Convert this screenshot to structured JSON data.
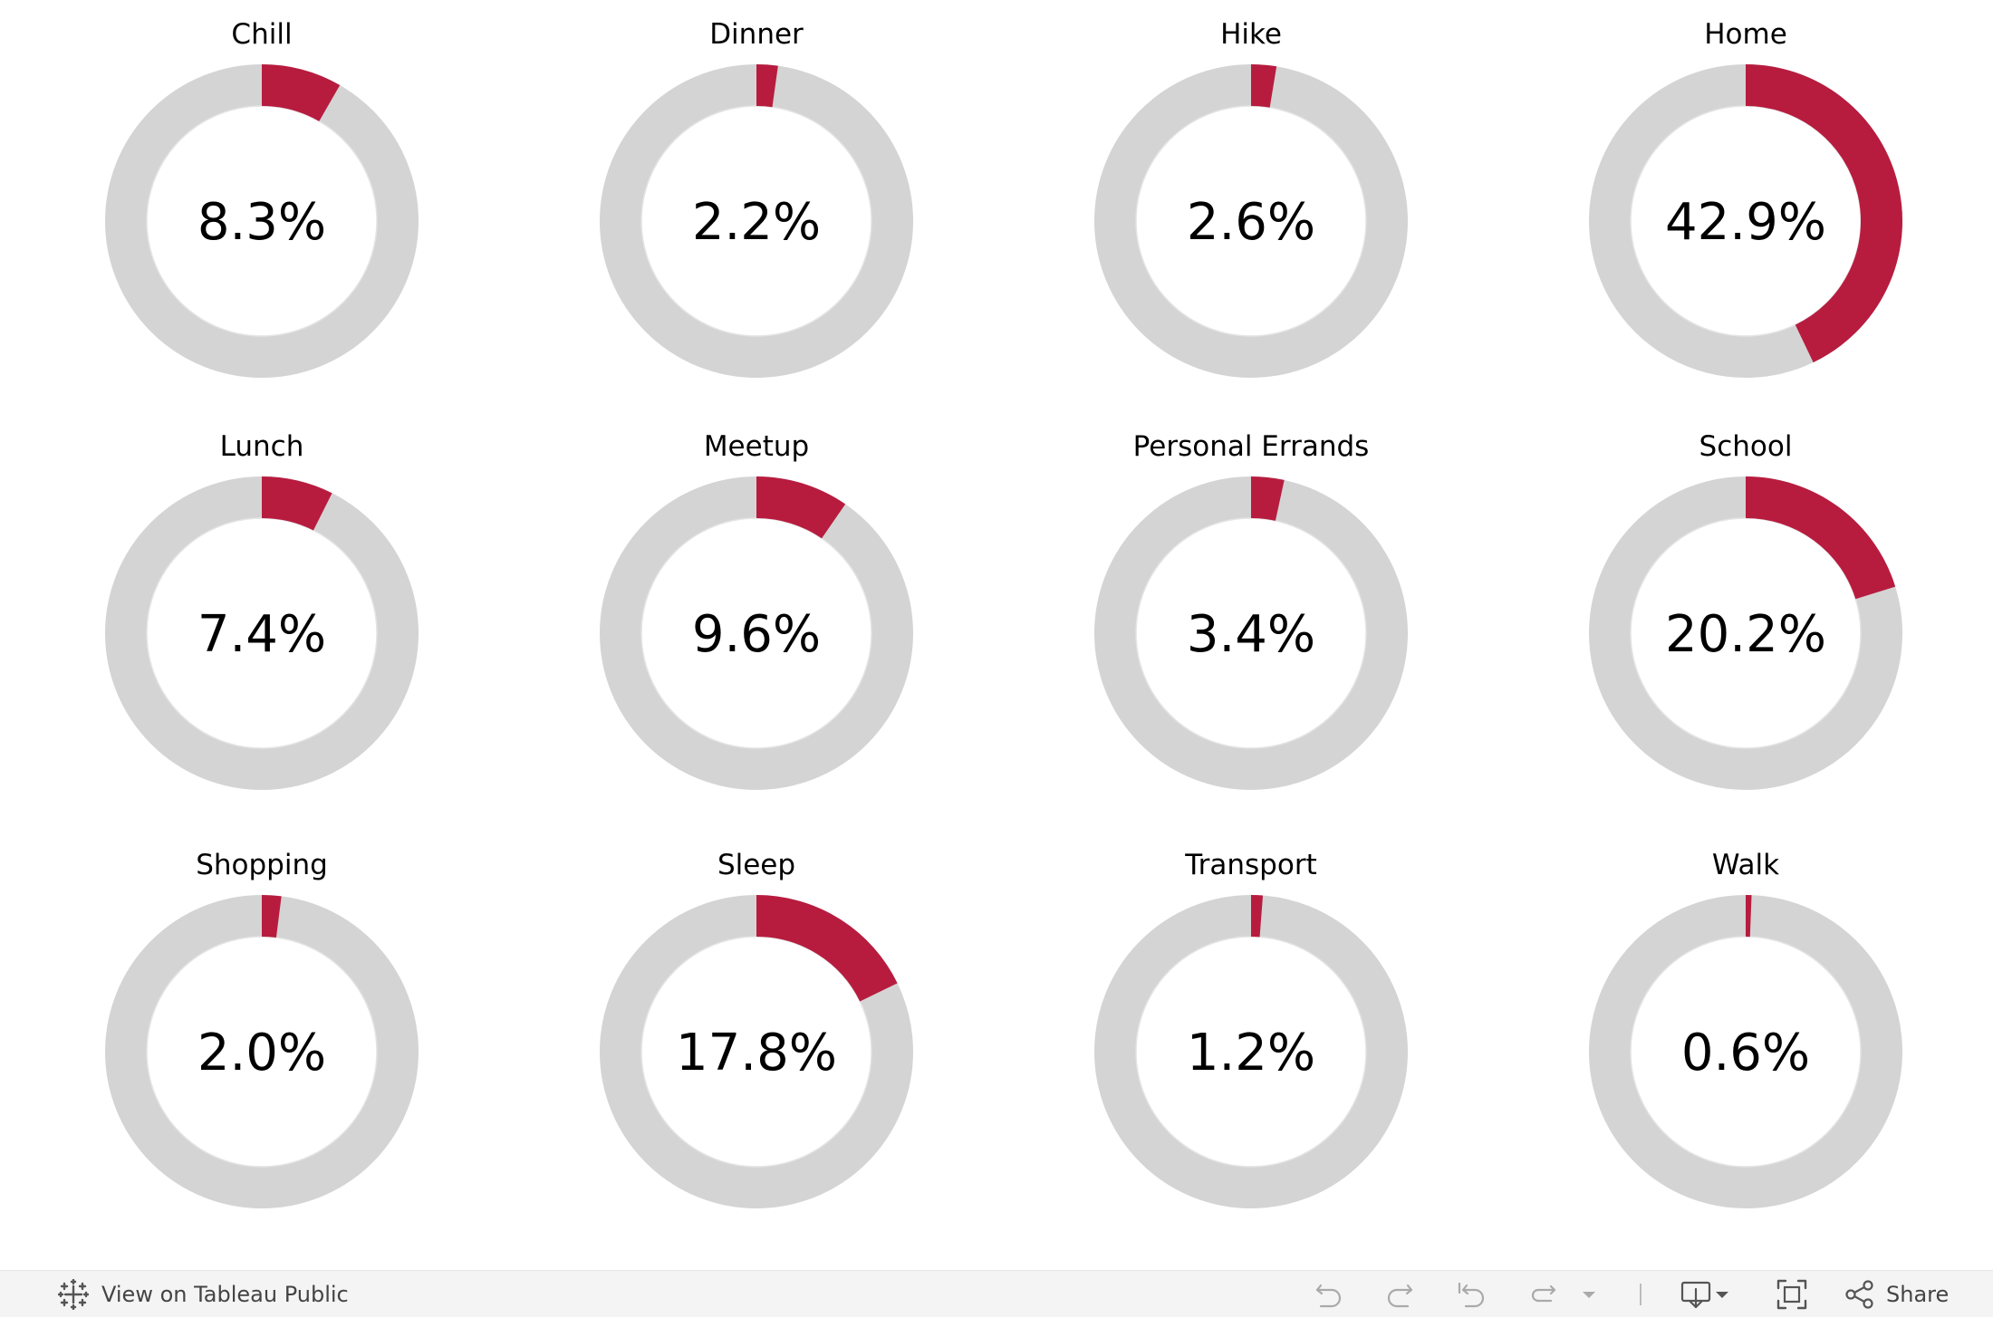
{
  "chart_data": {
    "type": "pie",
    "variant": "donut",
    "layout": "grid-3x4",
    "colors": {
      "value": "#b71c3f",
      "remainder": "#d4d4d4"
    },
    "categories": [
      "Chill",
      "Dinner",
      "Hike",
      "Home",
      "Lunch",
      "Meetup",
      "Personal Errands",
      "School",
      "Shopping",
      "Sleep",
      "Transport",
      "Walk"
    ],
    "values": [
      8.3,
      2.2,
      2.6,
      42.9,
      7.4,
      9.6,
      3.4,
      20.2,
      2.0,
      17.8,
      1.2,
      0.6
    ],
    "value_labels": [
      "8.3%",
      "2.2%",
      "2.6%",
      "42.9%",
      "7.4%",
      "9.6%",
      "3.4%",
      "20.2%",
      "2.0%",
      "17.8%",
      "1.2%",
      "0.6%"
    ],
    "unit": "%"
  },
  "toolbar": {
    "view_label": "View on Tableau Public",
    "share_label": "Share",
    "icons": [
      "tableau-logo-icon",
      "undo-icon",
      "redo-icon",
      "revert-icon",
      "refresh-icon",
      "pause-dropdown-icon",
      "download-icon",
      "fullscreen-icon",
      "share-icon"
    ]
  }
}
